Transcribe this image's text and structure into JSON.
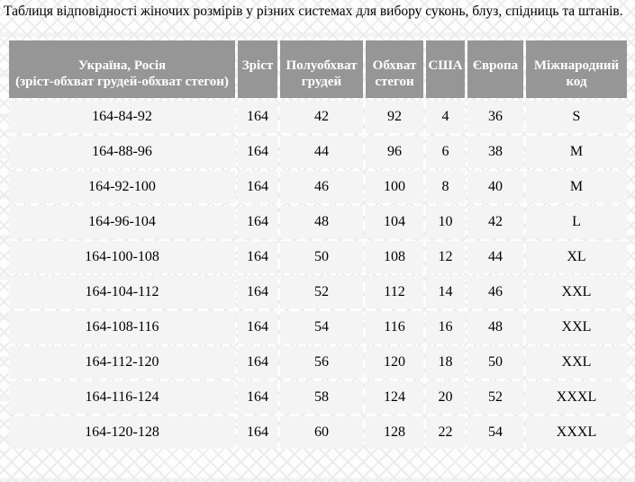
{
  "page": {
    "title": "Таблиця відповідності жіночих розмірів у різних системах для вибору суконь, блуз, спідниць та штанів."
  },
  "colors": {
    "header_bg": "#969696",
    "header_text": "#ffffff",
    "row_bg": "#f4f4f4",
    "body_text": "#000000"
  },
  "table": {
    "headers": [
      [
        "Україна, Росія",
        "(зріст-обхват грудей-обхват стегон)"
      ],
      [
        "Зріст"
      ],
      [
        "Полуобхват",
        "грудей"
      ],
      [
        "Обхват",
        "стегон"
      ],
      [
        "США"
      ],
      [
        "Європа"
      ],
      [
        "Міжнародний",
        "код"
      ]
    ],
    "rows": [
      [
        "164-84-92",
        "164",
        "42",
        "92",
        "4",
        "36",
        "S"
      ],
      [
        "164-88-96",
        "164",
        "44",
        "96",
        "6",
        "38",
        "M"
      ],
      [
        "164-92-100",
        "164",
        "46",
        "100",
        "8",
        "40",
        "M"
      ],
      [
        "164-96-104",
        "164",
        "48",
        "104",
        "10",
        "42",
        "L"
      ],
      [
        "164-100-108",
        "164",
        "50",
        "108",
        "12",
        "44",
        "XL"
      ],
      [
        "164-104-112",
        "164",
        "52",
        "112",
        "14",
        "46",
        "XXL"
      ],
      [
        "164-108-116",
        "164",
        "54",
        "116",
        "16",
        "48",
        "XXL"
      ],
      [
        "164-112-120",
        "164",
        "56",
        "120",
        "18",
        "50",
        "XXL"
      ],
      [
        "164-116-124",
        "164",
        "58",
        "124",
        "20",
        "52",
        "XXXL"
      ],
      [
        "164-120-128",
        "164",
        "60",
        "128",
        "22",
        "54",
        "XXXL"
      ]
    ]
  }
}
